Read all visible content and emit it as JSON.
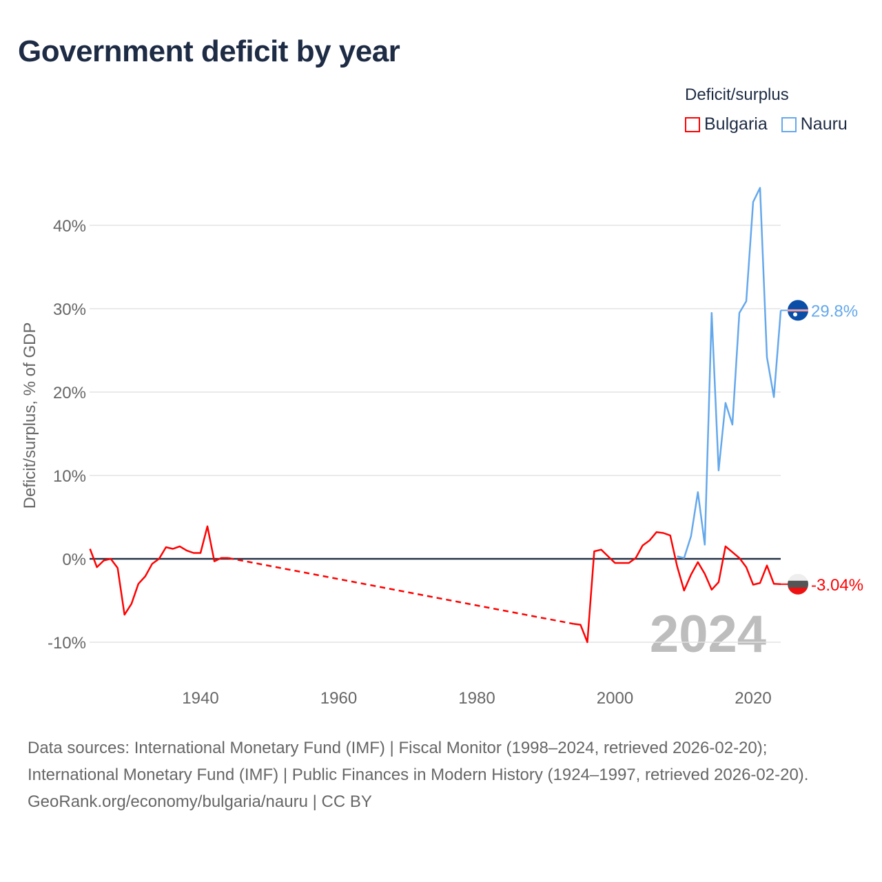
{
  "title": "Government deficit by year",
  "legend": {
    "title": "Deficit/surplus",
    "items": [
      {
        "label": "Bulgaria",
        "color": "#ff0000"
      },
      {
        "label": "Nauru",
        "color": "#64a8ec"
      }
    ]
  },
  "watermark_year": "2024",
  "source": {
    "line1": "Data sources: International Monetary Fund (IMF) | Fiscal Monitor (1998–2024, retrieved 2026-02-20); International Monetary Fund (IMF) | Public Finances in Modern History (1924–1997, retrieved 2026-02-20).",
    "line2": "GeoRank.org/economy/bulgaria/nauru | CC BY"
  },
  "chart_data": {
    "type": "line",
    "title": "Government deficit by year",
    "xlabel": "",
    "ylabel": "Deficit/surplus, % of GDP",
    "xlim": [
      1924,
      2024
    ],
    "ylim": [
      -12,
      46
    ],
    "x_ticks": [
      1940,
      1960,
      1980,
      2000,
      2020
    ],
    "y_ticks": [
      -10,
      0,
      10,
      20,
      30,
      40
    ],
    "y_tick_labels": [
      "-10%",
      "0%",
      "10%",
      "20%",
      "30%",
      "40%"
    ],
    "grid": true,
    "legend_position": "top-right",
    "series": [
      {
        "name": "Bulgaria",
        "color": "#ff0000",
        "end_label": "-3.04%",
        "gap": [
          1944,
          1994
        ],
        "x": [
          1924,
          1925,
          1926,
          1927,
          1928,
          1929,
          1930,
          1931,
          1932,
          1933,
          1934,
          1935,
          1936,
          1937,
          1938,
          1939,
          1940,
          1941,
          1942,
          1943,
          1944,
          1994,
          1995,
          1996,
          1997,
          1998,
          1999,
          2000,
          2001,
          2002,
          2003,
          2004,
          2005,
          2006,
          2007,
          2008,
          2009,
          2010,
          2011,
          2012,
          2013,
          2014,
          2015,
          2016,
          2017,
          2018,
          2019,
          2020,
          2021,
          2022,
          2023,
          2024
        ],
        "values": [
          1.2,
          -1.0,
          -0.2,
          0,
          -1.1,
          -6.7,
          -5.4,
          -3.0,
          -2.1,
          -0.6,
          0,
          1.4,
          1.2,
          1.5,
          1.0,
          0.7,
          0.7,
          3.9,
          -0.3,
          0.1,
          0.1,
          -7.8,
          -7.9,
          -10.0,
          0.9,
          1.1,
          0.3,
          -0.5,
          -0.5,
          -0.5,
          0.1,
          1.6,
          2.2,
          3.2,
          3.1,
          2.8,
          -0.9,
          -3.8,
          -1.9,
          -0.4,
          -1.8,
          -3.7,
          -2.8,
          1.5,
          0.8,
          0.1,
          -1.0,
          -3.1,
          -2.9,
          -0.8,
          -3.0,
          -3.04
        ]
      },
      {
        "name": "Nauru",
        "color": "#64a8ec",
        "end_label": "29.8%",
        "x": [
          2009,
          2010,
          2011,
          2012,
          2013,
          2014,
          2015,
          2016,
          2017,
          2018,
          2019,
          2020,
          2021,
          2022,
          2023,
          2024
        ],
        "values": [
          0.3,
          0.1,
          2.7,
          8.0,
          1.7,
          29.5,
          10.6,
          18.7,
          16.1,
          29.5,
          30.9,
          42.8,
          44.5,
          24.2,
          19.4,
          29.8
        ]
      }
    ]
  }
}
